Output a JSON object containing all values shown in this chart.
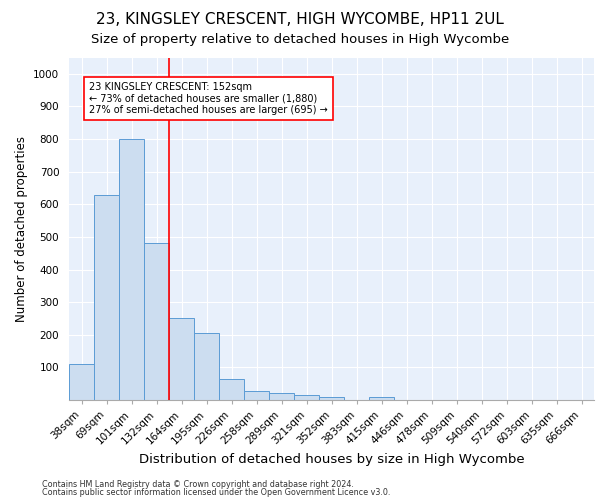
{
  "title1": "23, KINGSLEY CRESCENT, HIGH WYCOMBE, HP11 2UL",
  "title2": "Size of property relative to detached houses in High Wycombe",
  "xlabel": "Distribution of detached houses by size in High Wycombe",
  "ylabel": "Number of detached properties",
  "bar_labels": [
    "38sqm",
    "69sqm",
    "101sqm",
    "132sqm",
    "164sqm",
    "195sqm",
    "226sqm",
    "258sqm",
    "289sqm",
    "321sqm",
    "352sqm",
    "383sqm",
    "415sqm",
    "446sqm",
    "478sqm",
    "509sqm",
    "540sqm",
    "572sqm",
    "603sqm",
    "635sqm",
    "666sqm"
  ],
  "bar_values": [
    110,
    630,
    800,
    480,
    250,
    205,
    63,
    28,
    22,
    15,
    10,
    0,
    10,
    0,
    0,
    0,
    0,
    0,
    0,
    0,
    0
  ],
  "bar_color": "#ccddf0",
  "bar_edge_color": "#5b9bd5",
  "annotation_text": "23 KINGSLEY CRESCENT: 152sqm\n← 73% of detached houses are smaller (1,880)\n27% of semi-detached houses are larger (695) →",
  "annotation_box_color": "white",
  "annotation_box_edge_color": "red",
  "vline_color": "red",
  "ylim": [
    0,
    1050
  ],
  "yticks": [
    0,
    100,
    200,
    300,
    400,
    500,
    600,
    700,
    800,
    900,
    1000
  ],
  "footnote1": "Contains HM Land Registry data © Crown copyright and database right 2024.",
  "footnote2": "Contains public sector information licensed under the Open Government Licence v3.0.",
  "background_color": "#e8f0fb",
  "title1_fontsize": 11,
  "title2_fontsize": 9.5,
  "xlabel_fontsize": 9.5,
  "ylabel_fontsize": 8.5,
  "footnote_fontsize": 5.8,
  "annotation_fontsize": 7.0,
  "tick_fontsize": 7.5
}
